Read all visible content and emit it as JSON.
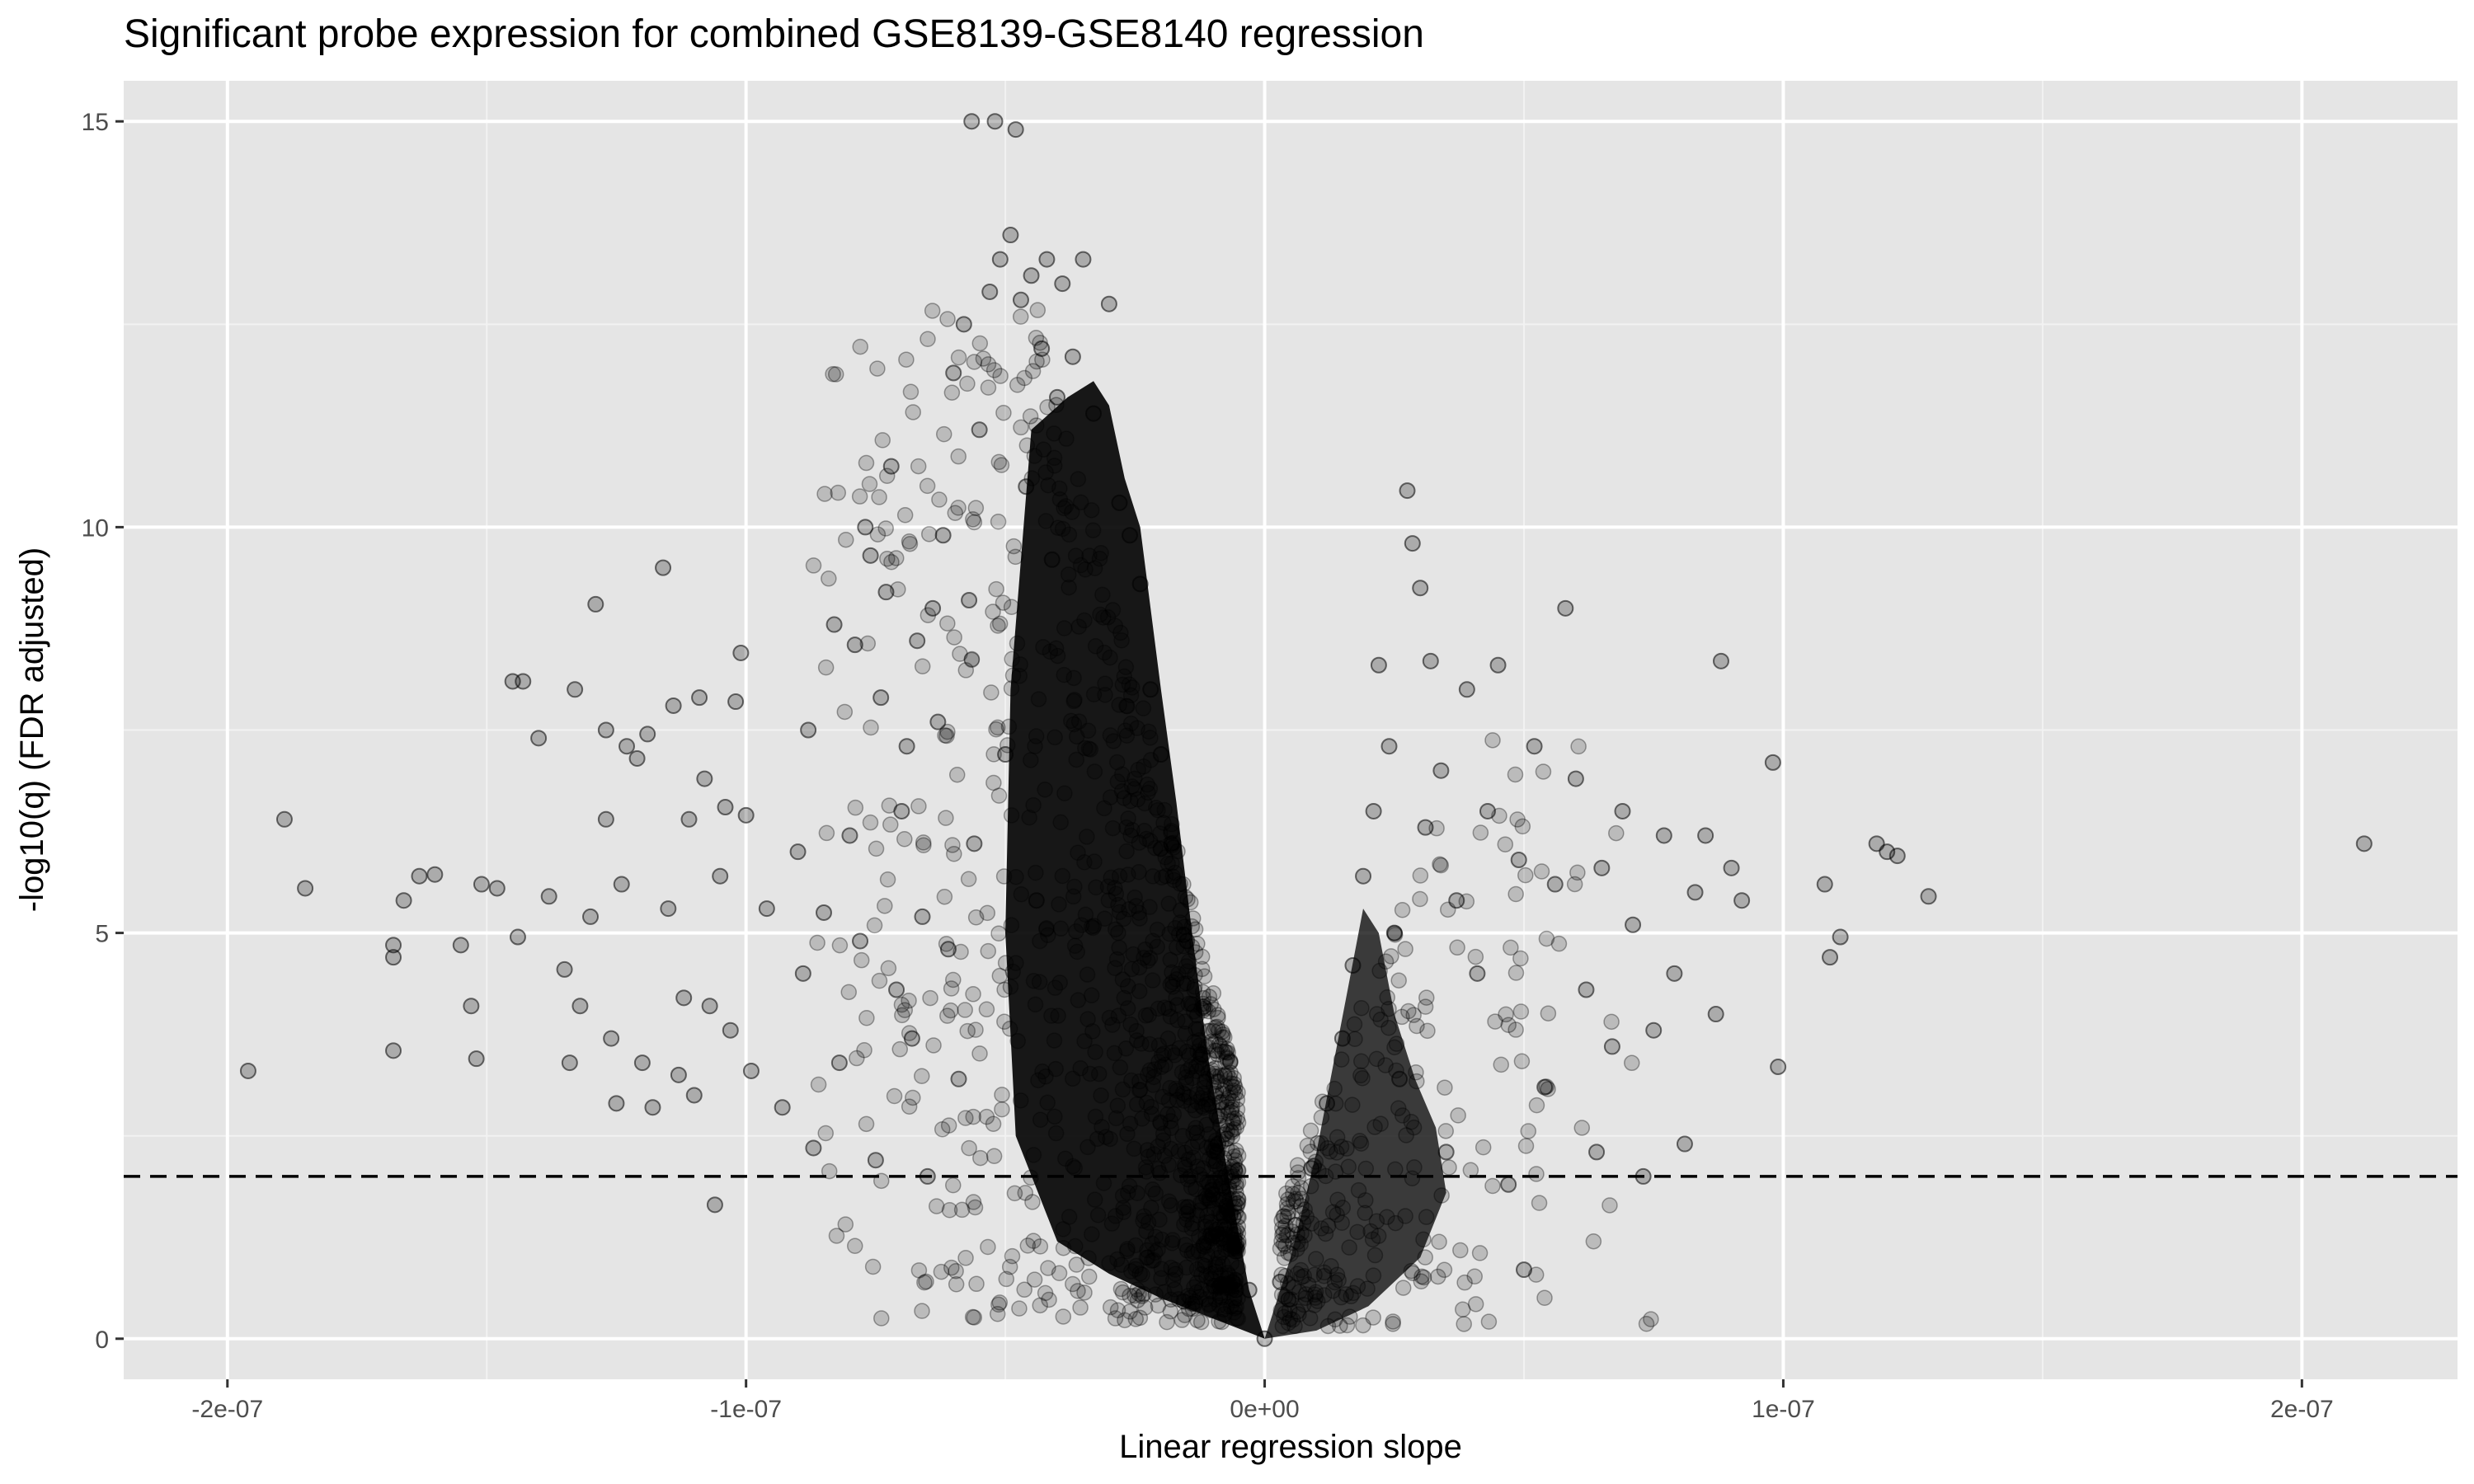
{
  "chart_data": {
    "type": "scatter",
    "title": "Significant probe expression for combined GSE8139-GSE8140 regression",
    "xlabel": "Linear regression slope",
    "ylabel": "-log10(q) (FDR adjusted)",
    "xlim": [
      -2.2e-07,
      2.3e-07
    ],
    "ylim": [
      -0.5,
      15.5
    ],
    "x_ticks": [
      -2e-07,
      -1e-07,
      0,
      1e-07,
      2e-07
    ],
    "x_tick_labels": [
      "-2e-07",
      "-1e-07",
      "0e+00",
      "1e-07",
      "2e-07"
    ],
    "y_ticks": [
      0,
      5,
      10,
      15
    ],
    "y_tick_labels": [
      "0",
      "5",
      "10",
      "15"
    ],
    "threshold_line": {
      "y": 2,
      "style": "dashed"
    },
    "grid": true,
    "point_color": "#000000",
    "point_alpha": 0.25,
    "series": [
      {
        "points": [
          [
            -1.96e-07,
            3.3
          ],
          [
            -1.89e-07,
            6.4
          ],
          [
            -1.85e-07,
            5.55
          ],
          [
            -1.68e-07,
            4.7
          ],
          [
            -1.68e-07,
            4.85
          ],
          [
            -1.68e-07,
            3.55
          ],
          [
            -1.66e-07,
            5.4
          ],
          [
            -1.63e-07,
            5.7
          ],
          [
            -1.6e-07,
            5.72
          ],
          [
            -1.55e-07,
            4.85
          ],
          [
            -1.53e-07,
            4.1
          ],
          [
            -1.52e-07,
            3.45
          ],
          [
            -1.51e-07,
            5.6
          ],
          [
            -1.48e-07,
            5.55
          ],
          [
            -1.45e-07,
            8.1
          ],
          [
            -1.44e-07,
            4.95
          ],
          [
            -1.43e-07,
            8.1
          ],
          [
            -1.4e-07,
            7.4
          ],
          [
            -1.38e-07,
            5.45
          ],
          [
            -1.35e-07,
            4.55
          ],
          [
            -1.34e-07,
            3.4
          ],
          [
            -1.33e-07,
            8.0
          ],
          [
            -1.32e-07,
            4.1
          ],
          [
            -1.3e-07,
            5.2
          ],
          [
            -1.29e-07,
            9.05
          ],
          [
            -1.27e-07,
            6.4
          ],
          [
            -1.27e-07,
            7.5
          ],
          [
            -1.26e-07,
            3.7
          ],
          [
            -1.25e-07,
            2.9
          ],
          [
            -1.24e-07,
            5.6
          ],
          [
            -1.23e-07,
            7.3
          ],
          [
            -1.21e-07,
            7.15
          ],
          [
            -1.2e-07,
            3.4
          ],
          [
            -1.19e-07,
            7.45
          ],
          [
            -1.18e-07,
            2.85
          ],
          [
            -1.16e-07,
            9.5
          ],
          [
            -1.15e-07,
            5.3
          ],
          [
            -1.14e-07,
            7.8
          ],
          [
            -1.13e-07,
            3.25
          ],
          [
            -1.12e-07,
            4.2
          ],
          [
            -1.11e-07,
            6.4
          ],
          [
            -1.1e-07,
            3.0
          ],
          [
            -1.09e-07,
            7.9
          ],
          [
            -1.08e-07,
            6.9
          ],
          [
            -1.07e-07,
            4.1
          ],
          [
            -1.06e-07,
            1.65
          ],
          [
            -1.05e-07,
            5.7
          ],
          [
            -1.04e-07,
            6.55
          ],
          [
            -1.03e-07,
            3.8
          ],
          [
            -1.02e-07,
            7.85
          ],
          [
            -1.01e-07,
            8.45
          ],
          [
            -1e-07,
            6.45
          ],
          [
            -9.9e-08,
            3.3
          ],
          [
            -9.6e-08,
            5.3
          ],
          [
            -9.3e-08,
            2.85
          ],
          [
            -9e-08,
            6.0
          ],
          [
            -8.9e-08,
            4.5
          ],
          [
            -8.8e-08,
            7.5
          ],
          [
            -8.7e-08,
            2.35
          ],
          [
            -8.5e-08,
            5.25
          ],
          [
            -8.3e-08,
            8.8
          ],
          [
            -8.2e-08,
            3.4
          ],
          [
            -8e-08,
            6.2
          ],
          [
            -7.9e-08,
            8.55
          ],
          [
            -7.8e-08,
            4.9
          ],
          [
            -7.7e-08,
            10.0
          ],
          [
            -7.6e-08,
            9.65
          ],
          [
            -7.5e-08,
            2.2
          ],
          [
            -7.4e-08,
            7.9
          ],
          [
            -7.3e-08,
            9.2
          ],
          [
            -7.2e-08,
            10.75
          ],
          [
            -7.1e-08,
            4.3
          ],
          [
            -7e-08,
            6.5
          ],
          [
            -6.9e-08,
            7.3
          ],
          [
            -6.8e-08,
            3.7
          ],
          [
            -6.7e-08,
            8.6
          ],
          [
            -6.6e-08,
            5.2
          ],
          [
            -6.5e-08,
            2.0
          ],
          [
            -6.4e-08,
            9.0
          ],
          [
            -6.3e-08,
            7.6
          ],
          [
            -6.2e-08,
            9.9
          ],
          [
            -6.1e-08,
            4.8
          ],
          [
            -6e-08,
            11.9
          ],
          [
            -5.9e-08,
            3.2
          ],
          [
            -5.8e-08,
            12.5
          ],
          [
            -5.7e-08,
            9.1
          ],
          [
            -5.65e-08,
            15.0
          ],
          [
            -5.6e-08,
            6.1
          ],
          [
            -5.5e-08,
            11.2
          ],
          [
            -5.3e-08,
            12.9
          ],
          [
            -5.2e-08,
            15.0
          ],
          [
            -5.1e-08,
            13.3
          ],
          [
            -5e-08,
            7.2
          ],
          [
            -4.9e-08,
            13.6
          ],
          [
            -4.8e-08,
            14.9
          ],
          [
            -4.7e-08,
            12.8
          ],
          [
            -4.6e-08,
            10.5
          ],
          [
            -4.5e-08,
            13.1
          ],
          [
            -4.4e-08,
            5.4
          ],
          [
            -4.3e-08,
            12.2
          ],
          [
            -4.2e-08,
            13.3
          ],
          [
            -4.1e-08,
            9.6
          ],
          [
            -4e-08,
            11.6
          ],
          [
            -3.9e-08,
            13.0
          ],
          [
            -3.7e-08,
            12.1
          ],
          [
            -3.5e-08,
            13.3
          ],
          [
            -3.3e-08,
            11.4
          ],
          [
            -3e-08,
            12.75
          ],
          [
            -2.8e-08,
            10.3
          ],
          [
            -2.6e-08,
            9.9
          ],
          [
            -2.4e-08,
            9.3
          ],
          [
            -2.2e-08,
            8.0
          ],
          [
            -2e-08,
            7.2
          ],
          [
            -1.8e-08,
            6.1
          ],
          [
            -1.5e-08,
            4.9
          ],
          [
            -1.2e-08,
            3.5
          ],
          [
            -9e-09,
            2.4
          ],
          [
            -6e-09,
            1.5
          ],
          [
            -3e-09,
            0.6
          ],
          [
            0.0,
            0.0
          ],
          [
            3e-09,
            0.7
          ],
          [
            6e-09,
            1.4
          ],
          [
            9e-09,
            2.1
          ],
          [
            1.2e-08,
            2.9
          ],
          [
            1.5e-08,
            3.7
          ],
          [
            1.7e-08,
            4.6
          ],
          [
            1.9e-08,
            5.7
          ],
          [
            2.1e-08,
            6.5
          ],
          [
            2.2e-08,
            8.3
          ],
          [
            2.4e-08,
            7.3
          ],
          [
            2.5e-08,
            5.0
          ],
          [
            2.6e-08,
            3.2
          ],
          [
            2.75e-08,
            10.45
          ],
          [
            2.85e-08,
            9.8
          ],
          [
            3e-08,
            9.25
          ],
          [
            3.1e-08,
            6.3
          ],
          [
            3.2e-08,
            8.35
          ],
          [
            3.4e-08,
            7.0
          ],
          [
            3.5e-08,
            2.3
          ],
          [
            3.7e-08,
            5.4
          ],
          [
            3.9e-08,
            8.0
          ],
          [
            4.1e-08,
            4.5
          ],
          [
            4.3e-08,
            6.5
          ],
          [
            4.5e-08,
            8.3
          ],
          [
            4.7e-08,
            1.9
          ],
          [
            4.9e-08,
            5.9
          ],
          [
            5e-08,
            0.85
          ],
          [
            5.2e-08,
            7.3
          ],
          [
            5.4e-08,
            3.1
          ],
          [
            5.6e-08,
            5.6
          ],
          [
            5.8e-08,
            9.0
          ],
          [
            6e-08,
            6.9
          ],
          [
            6.2e-08,
            4.3
          ],
          [
            6.4e-08,
            2.3
          ],
          [
            6.5e-08,
            5.8
          ],
          [
            6.7e-08,
            3.6
          ],
          [
            6.9e-08,
            6.5
          ],
          [
            7.1e-08,
            5.1
          ],
          [
            7.3e-08,
            2.0
          ],
          [
            7.5e-08,
            3.8
          ],
          [
            7.7e-08,
            6.2
          ],
          [
            7.9e-08,
            4.5
          ],
          [
            8.1e-08,
            2.4
          ],
          [
            8.3e-08,
            5.5
          ],
          [
            8.5e-08,
            6.2
          ],
          [
            8.7e-08,
            4.0
          ],
          [
            8.8e-08,
            8.35
          ],
          [
            9e-08,
            5.8
          ],
          [
            9.2e-08,
            5.4
          ],
          [
            9.8e-08,
            7.1
          ],
          [
            9.9e-08,
            3.35
          ],
          [
            1.08e-07,
            5.6
          ],
          [
            1.09e-07,
            4.7
          ],
          [
            1.11e-07,
            4.95
          ],
          [
            1.18e-07,
            6.1
          ],
          [
            1.2e-07,
            6.0
          ],
          [
            1.22e-07,
            5.95
          ],
          [
            1.28e-07,
            5.45
          ],
          [
            2.12e-07,
            6.1
          ]
        ]
      }
    ]
  }
}
